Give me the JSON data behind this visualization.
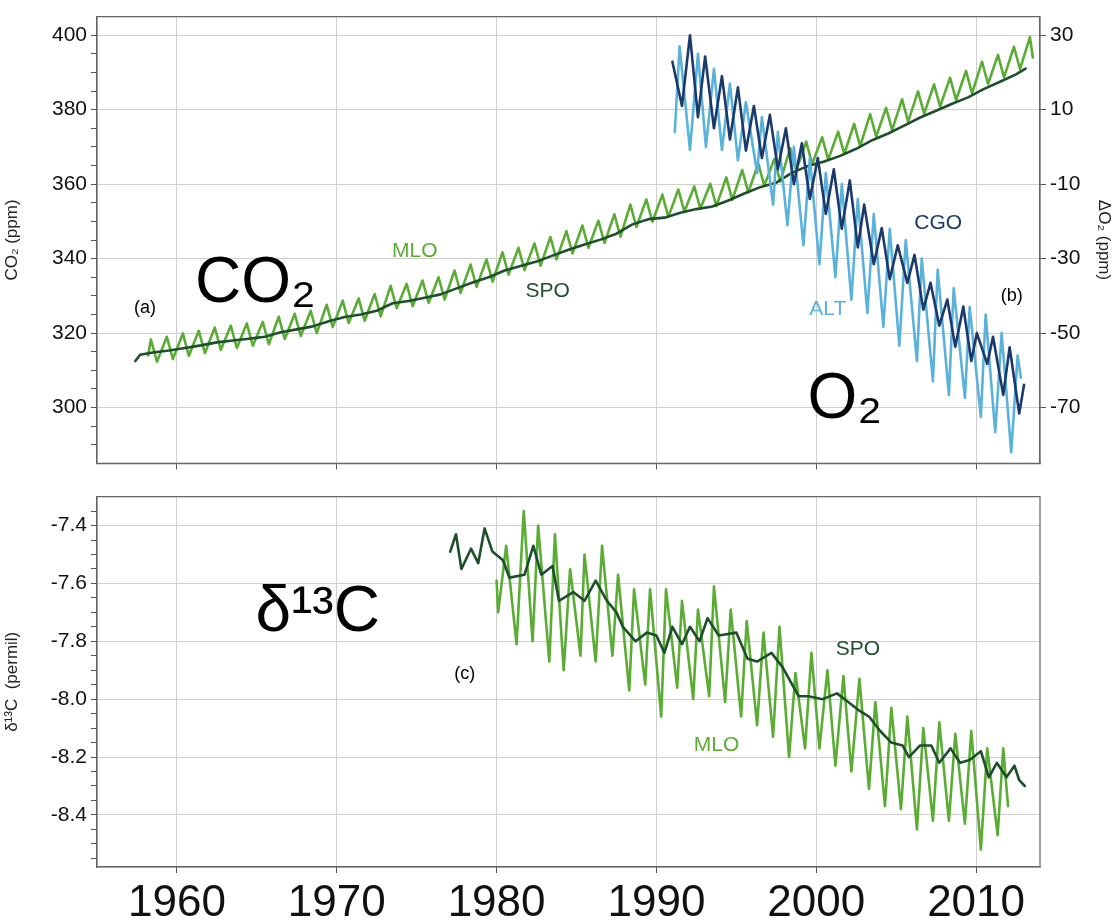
{
  "chart_data": [
    {
      "type": "line",
      "ylabel": "CO₂ (ppm)",
      "y2label": "ΔO₂ (ppm)",
      "xlim": [
        1955,
        2014
      ],
      "xticks": [
        1960,
        1970,
        1980,
        1990,
        2000,
        2010
      ],
      "ylim": [
        285,
        405
      ],
      "yticks": [
        {
          "value": 290,
          "label": null
        },
        {
          "value": 295,
          "label": null
        },
        300,
        {
          "value": 305,
          "label": null
        },
        {
          "value": 310,
          "label": null
        },
        {
          "value": 315,
          "label": null
        },
        320,
        {
          "value": 325,
          "label": null
        },
        {
          "value": 330,
          "label": null
        },
        {
          "value": 335,
          "label": null
        },
        340,
        {
          "value": 345,
          "label": null
        },
        {
          "value": 350,
          "label": null
        },
        {
          "value": 355,
          "label": null
        },
        360,
        {
          "value": 365,
          "label": null
        },
        {
          "value": 370,
          "label": null
        },
        {
          "value": 375,
          "label": null
        },
        380,
        {
          "value": 385,
          "label": null
        },
        {
          "value": 390,
          "label": null
        },
        {
          "value": 395,
          "label": null
        },
        400
      ],
      "y2lim": [
        -85,
        35
      ],
      "y2ticks": [
        -70,
        -50,
        -30,
        -10,
        10,
        30
      ],
      "tick_labels": "y",
      "grid": true,
      "marker": "none",
      "line_style": "solid",
      "annotations": [
        "CO₂",
        "O₂",
        "(a)",
        "(b)"
      ],
      "series": [
        {
          "name": "MLO",
          "color": "#5aac34",
          "x": [
            1958.2,
            1958.37,
            1958.75,
            1959.37,
            1959.75,
            1960.37,
            1960.75,
            1961.37,
            1961.75,
            1962.37,
            1962.75,
            1963.37,
            1963.75,
            1964.37,
            1964.75,
            1965.37,
            1965.75,
            1966.37,
            1966.75,
            1967.37,
            1967.75,
            1968.37,
            1968.75,
            1969.37,
            1969.75,
            1970.37,
            1970.75,
            1971.37,
            1971.75,
            1972.37,
            1972.75,
            1973.37,
            1973.75,
            1974.37,
            1974.75,
            1975.37,
            1975.75,
            1976.37,
            1976.75,
            1977.37,
            1977.75,
            1978.37,
            1978.75,
            1979.37,
            1979.75,
            1980.37,
            1980.75,
            1981.37,
            1981.75,
            1982.37,
            1982.75,
            1983.37,
            1983.75,
            1984.37,
            1984.75,
            1985.37,
            1985.75,
            1986.37,
            1986.75,
            1987.37,
            1987.75,
            1988.37,
            1988.75,
            1989.37,
            1989.75,
            1990.37,
            1990.75,
            1991.37,
            1991.75,
            1992.37,
            1992.75,
            1993.37,
            1993.75,
            1994.37,
            1994.75,
            1995.37,
            1995.75,
            1996.37,
            1996.75,
            1997.37,
            1997.75,
            1998.37,
            1998.75,
            1999.37,
            1999.75,
            2000.37,
            2000.75,
            2001.37,
            2001.75,
            2002.37,
            2002.75,
            2003.37,
            2003.75,
            2004.37,
            2004.75,
            2005.37,
            2005.75,
            2006.37,
            2006.75,
            2007.37,
            2007.75,
            2008.37,
            2008.75,
            2009.37,
            2009.75,
            2010.37,
            2010.75,
            2011.37,
            2011.75,
            2012.37,
            2012.75,
            2013.37,
            2013.55
          ],
          "values": [
            314,
            318.3,
            312.3,
            319.0,
            313.0,
            319.9,
            313.9,
            320.6,
            314.6,
            321.5,
            315.5,
            322.0,
            316.0,
            322.6,
            316.6,
            323.0,
            317.0,
            324.4,
            318.4,
            325.2,
            319.2,
            326.0,
            320.0,
            327.6,
            321.6,
            328.7,
            322.7,
            329.3,
            323.3,
            330.5,
            324.5,
            332.7,
            326.7,
            333.2,
            327.2,
            334.1,
            328.1,
            335.0,
            329.0,
            336.8,
            330.8,
            338.4,
            332.4,
            339.8,
            333.8,
            341.7,
            335.7,
            342.9,
            336.9,
            344.1,
            338.1,
            345.8,
            339.8,
            347.4,
            341.4,
            348.9,
            342.9,
            350.2,
            344.2,
            351.9,
            345.9,
            354.5,
            348.5,
            355.9,
            349.9,
            357.2,
            351.2,
            358.6,
            352.6,
            359.4,
            353.4,
            360.1,
            354.1,
            361.8,
            355.8,
            363.8,
            357.8,
            365.6,
            359.6,
            366.7,
            360.7,
            369.7,
            363.7,
            371.4,
            365.4,
            372.6,
            366.6,
            374.1,
            368.1,
            376.2,
            370.2,
            378.8,
            372.8,
            380.5,
            374.5,
            382.8,
            376.8,
            384.9,
            378.9,
            386.8,
            380.8,
            388.6,
            382.6,
            390.4,
            384.4,
            392.9,
            386.9,
            394.7,
            388.7,
            396.9,
            390.9,
            399.5,
            394
          ]
        },
        {
          "name": "SPO",
          "color": "#1d4f2c",
          "x": [
            1957.4,
            1957.7,
            1958.5,
            1959.5,
            1960.5,
            1961.5,
            1962.5,
            1963.5,
            1964.5,
            1965.5,
            1966.5,
            1967.5,
            1968.5,
            1969.5,
            1970.5,
            1971.5,
            1972.5,
            1973.5,
            1974.5,
            1975.5,
            1976.5,
            1977.5,
            1978.5,
            1979.5,
            1980.5,
            1981.5,
            1982.5,
            1983.5,
            1984.5,
            1985.5,
            1986.5,
            1987.5,
            1988.5,
            1989.5,
            1990.5,
            1991.5,
            1992.5,
            1993.5,
            1994.5,
            1995.5,
            1996.5,
            1997.5,
            1998.5,
            1999.5,
            2000.5,
            2001.5,
            2002.5,
            2003.5,
            2004.5,
            2005.5,
            2006.5,
            2007.5,
            2008.5,
            2009.5,
            2010.5,
            2011.5,
            2012.5,
            2013.1
          ],
          "values": [
            312.5,
            314.2,
            314.8,
            315.3,
            316.0,
            316.7,
            317.5,
            318.0,
            318.5,
            319.0,
            320.2,
            321.0,
            321.8,
            323.2,
            324.3,
            325.0,
            326.0,
            328.0,
            328.6,
            329.5,
            330.4,
            332.0,
            333.6,
            335.0,
            336.8,
            338.0,
            339.2,
            340.8,
            342.4,
            343.8,
            345.1,
            346.7,
            349.2,
            350.6,
            351.0,
            352.3,
            353.3,
            354.0,
            355.6,
            357.5,
            359.2,
            360.4,
            363.1,
            364.9,
            366.1,
            367.6,
            369.5,
            371.8,
            373.6,
            375.7,
            377.9,
            379.7,
            381.6,
            383.3,
            385.6,
            387.5,
            389.5,
            391.0
          ]
        },
        {
          "name": "ALT",
          "color": "#5ab1da",
          "axis": "y2",
          "x": [
            1991.15,
            1991.45,
            1992.1,
            1992.6,
            1993.1,
            1993.6,
            1994.1,
            1994.6,
            1995.1,
            1995.6,
            1996.3,
            1996.6,
            1997.3,
            1997.6,
            1998.2,
            1998.6,
            1999.2,
            1999.6,
            2000.2,
            2000.6,
            2001.2,
            2001.6,
            2002.2,
            2002.6,
            2003.2,
            2003.6,
            2004.2,
            2004.6,
            2005.2,
            2005.6,
            2006.3,
            2006.6,
            2007.3,
            2007.6,
            2008.3,
            2008.6,
            2009.3,
            2009.6,
            2010.3,
            2010.6,
            2011.2,
            2011.6,
            2012.2,
            2012.6,
            2012.8
          ],
          "values": [
            4,
            27,
            -0.8,
            25,
            0,
            21,
            -0.8,
            17,
            -3.6,
            12,
            -7,
            8,
            -15.5,
            4,
            -21,
            0,
            -26.4,
            -3,
            -31.5,
            -7,
            -35,
            -10,
            -41,
            -14,
            -44.6,
            -18,
            -48.3,
            -22,
            -53.4,
            -25,
            -57.5,
            -30,
            -62.9,
            -33,
            -66.6,
            -38,
            -67.4,
            -43,
            -72.5,
            -45,
            -76.6,
            -50,
            -82,
            -56,
            -62
          ]
        },
        {
          "name": "CGO",
          "color": "#1b3a6b",
          "axis": "y2",
          "x": [
            1991.0,
            1991.6,
            1992.1,
            1992.6,
            1993.05,
            1993.6,
            1994.1,
            1994.6,
            1995.1,
            1995.6,
            1996.1,
            1996.6,
            1997.1,
            1997.6,
            1998.1,
            1998.6,
            1999.1,
            1999.6,
            2000.1,
            2000.6,
            2001.1,
            2001.6,
            2002.1,
            2002.6,
            2003.0,
            2003.6,
            2004.1,
            2004.6,
            2005.1,
            2005.7,
            2006.15,
            2006.7,
            2007.15,
            2007.7,
            2008.2,
            2008.7,
            2009.2,
            2009.7,
            2010.05,
            2010.7,
            2011.06,
            2011.7,
            2012.1,
            2012.7,
            2013.0
          ],
          "values": [
            22.9,
            11,
            30,
            8,
            24.3,
            5,
            19,
            2,
            16,
            -1,
            11,
            -3,
            8.6,
            -6,
            5,
            -10,
            1,
            -14,
            -3,
            -18,
            -6,
            -22,
            -9,
            -27,
            -15.5,
            -31.5,
            -21.8,
            -35.5,
            -26.4,
            -36.5,
            -29,
            -43.7,
            -36.5,
            -48,
            -41,
            -53.7,
            -42.9,
            -57.5,
            -50,
            -58.3,
            -51,
            -66.6,
            -53.8,
            -71.6,
            -63.9
          ]
        }
      ]
    },
    {
      "type": "line",
      "ylabel": "δ¹³C  (permil)",
      "xlim": [
        1955,
        2014
      ],
      "xticks": [
        1960,
        1970,
        1980,
        1990,
        2000,
        2010
      ],
      "ylim": [
        -8.58,
        -7.3
      ],
      "yticks": [
        {
          "value": -8.55,
          "label": null
        },
        {
          "value": -8.5,
          "label": null
        },
        {
          "value": -8.45,
          "label": null
        },
        -8.4,
        {
          "value": -8.35,
          "label": null
        },
        {
          "value": -8.3,
          "label": null
        },
        {
          "value": -8.25,
          "label": null
        },
        -8.2,
        {
          "value": -8.15,
          "label": null
        },
        {
          "value": -8.1,
          "label": null
        },
        {
          "value": -8.05,
          "label": null
        },
        {
          "value": -8,
          "label": "-8.0"
        },
        {
          "value": -7.95,
          "label": null
        },
        {
          "value": -7.9,
          "label": null
        },
        {
          "value": -7.85,
          "label": null
        },
        -7.8,
        {
          "value": -7.75,
          "label": null
        },
        {
          "value": -7.7,
          "label": null
        },
        {
          "value": -7.65,
          "label": null
        },
        -7.6,
        {
          "value": -7.55,
          "label": null
        },
        {
          "value": -7.5,
          "label": null
        },
        {
          "value": -7.45,
          "label": null
        },
        -7.4,
        {
          "value": -7.35,
          "label": null
        }
      ],
      "grid": true,
      "marker": "none",
      "line_style": "solid",
      "annotations": [
        "δ¹³C",
        "(c)"
      ],
      "series": [
        {
          "name": "MLO",
          "color": "#5aac34",
          "x": [
            1980.0,
            1980.1,
            1980.6,
            1981.25,
            1981.7,
            1982.25,
            1982.6,
            1983.3,
            1983.65,
            1984.2,
            1984.6,
            1985.25,
            1985.5,
            1986.2,
            1986.6,
            1987.25,
            1987.6,
            1988.3,
            1988.6,
            1989.3,
            1989.6,
            1990.3,
            1990.6,
            1991.3,
            1991.6,
            1992.3,
            1992.6,
            1993.3,
            1993.6,
            1994.3,
            1994.65,
            1995.3,
            1995.65,
            1996.3,
            1996.7,
            1997.3,
            1997.7,
            1998.3,
            1998.7,
            1999.3,
            1999.7,
            2000.2,
            2000.7,
            2001.2,
            2001.7,
            2002.2,
            2002.7,
            2003.3,
            2003.7,
            2004.3,
            2004.7,
            2005.3,
            2005.7,
            2006.3,
            2006.7,
            2007.3,
            2007.7,
            2008.3,
            2008.7,
            2009.3,
            2009.7,
            2010.3,
            2010.7,
            2011.35,
            2011.7,
            2012.0
          ],
          "values": [
            -7.59,
            -7.7,
            -7.47,
            -7.81,
            -7.35,
            -7.8,
            -7.4,
            -7.87,
            -7.43,
            -7.9,
            -7.55,
            -7.85,
            -7.5,
            -7.87,
            -7.47,
            -7.85,
            -7.57,
            -7.97,
            -7.62,
            -7.95,
            -7.62,
            -8.06,
            -7.62,
            -7.96,
            -7.66,
            -8.0,
            -7.69,
            -7.99,
            -7.61,
            -8.01,
            -7.69,
            -8.06,
            -7.73,
            -8.09,
            -7.77,
            -8.13,
            -7.75,
            -8.2,
            -7.91,
            -8.17,
            -7.84,
            -8.17,
            -7.9,
            -8.23,
            -7.92,
            -8.25,
            -7.93,
            -8.31,
            -8.01,
            -8.37,
            -8.03,
            -8.38,
            -8.06,
            -8.45,
            -8.1,
            -8.42,
            -8.08,
            -8.42,
            -8.12,
            -8.43,
            -8.11,
            -8.52,
            -8.17,
            -8.47,
            -8.17,
            -8.37
          ]
        },
        {
          "name": "SPO",
          "color": "#1d4f2c",
          "x": [
            1977.1,
            1977.46,
            1977.8,
            1978.4,
            1978.85,
            1979.25,
            1979.74,
            1980.4,
            1980.8,
            1981.75,
            1982.3,
            1982.8,
            1983.5,
            1983.9,
            1984.8,
            1985.5,
            1986.2,
            1986.9,
            1987.5,
            1987.9,
            1988.7,
            1989.4,
            1990.0,
            1990.5,
            1991.0,
            1991.6,
            1992.1,
            1992.7,
            1993.2,
            1993.9,
            1995.0,
            1995.7,
            1996.3,
            1997.2,
            1997.9,
            1998.9,
            1999.5,
            2000.4,
            2001.3,
            2002.0,
            2002.7,
            2003.3,
            2004.0,
            2004.7,
            2005.4,
            2005.8,
            2006.5,
            2007.2,
            2007.7,
            2008.4,
            2009.0,
            2009.6,
            2010.3,
            2010.8,
            2011.3,
            2011.9,
            2012.4,
            2012.7,
            2013.05
          ],
          "values": [
            -7.49,
            -7.43,
            -7.55,
            -7.48,
            -7.53,
            -7.41,
            -7.49,
            -7.52,
            -7.58,
            -7.57,
            -7.47,
            -7.57,
            -7.54,
            -7.66,
            -7.63,
            -7.66,
            -7.59,
            -7.66,
            -7.7,
            -7.75,
            -7.8,
            -7.77,
            -7.78,
            -7.84,
            -7.75,
            -7.81,
            -7.75,
            -7.8,
            -7.72,
            -7.78,
            -7.77,
            -7.86,
            -7.87,
            -7.84,
            -7.89,
            -7.99,
            -7.99,
            -8.0,
            -7.98,
            -8.01,
            -8.04,
            -8.06,
            -8.11,
            -8.15,
            -8.16,
            -8.2,
            -8.16,
            -8.16,
            -8.22,
            -8.17,
            -8.22,
            -8.21,
            -8.18,
            -8.27,
            -8.22,
            -8.27,
            -8.23,
            -8.28,
            -8.3
          ]
        }
      ]
    }
  ]
}
